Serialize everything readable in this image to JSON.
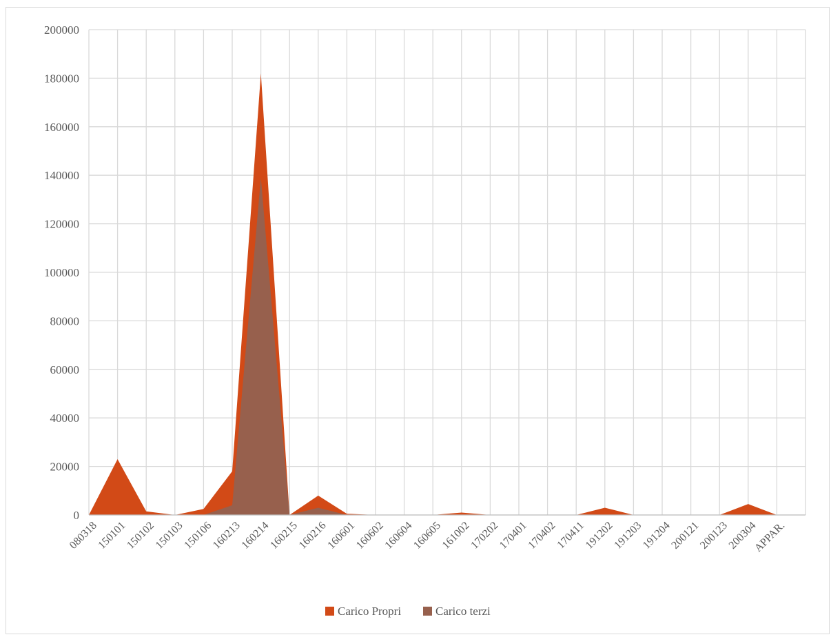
{
  "chart_data": {
    "type": "area",
    "categories": [
      "080318",
      "150101",
      "150102",
      "150103",
      "150106",
      "160213",
      "160214",
      "160215",
      "160216",
      "160601",
      "160602",
      "160604",
      "160605",
      "161002",
      "170202",
      "170401",
      "170402",
      "170411",
      "191202",
      "191203",
      "191204",
      "200121",
      "200123",
      "200304",
      "APPAR."
    ],
    "series": [
      {
        "name": "Carico Propri",
        "color": "#d24a17",
        "values": [
          0,
          23000,
          1500,
          0,
          2500,
          18000,
          182000,
          0,
          8000,
          500,
          0,
          0,
          0,
          1000,
          0,
          0,
          0,
          0,
          3000,
          0,
          0,
          0,
          0,
          4500,
          0
        ]
      },
      {
        "name": "Carico terzi",
        "color": "#97604d",
        "values": [
          0,
          0,
          0,
          0,
          0,
          4000,
          139000,
          0,
          3000,
          0,
          0,
          0,
          0,
          0,
          0,
          0,
          0,
          0,
          0,
          0,
          0,
          0,
          0,
          0,
          0
        ]
      }
    ],
    "ylim": [
      0,
      200000
    ],
    "yticks": [
      0,
      20000,
      40000,
      60000,
      80000,
      100000,
      120000,
      140000,
      160000,
      180000,
      200000
    ],
    "grid": true,
    "legend_position": "bottom"
  }
}
